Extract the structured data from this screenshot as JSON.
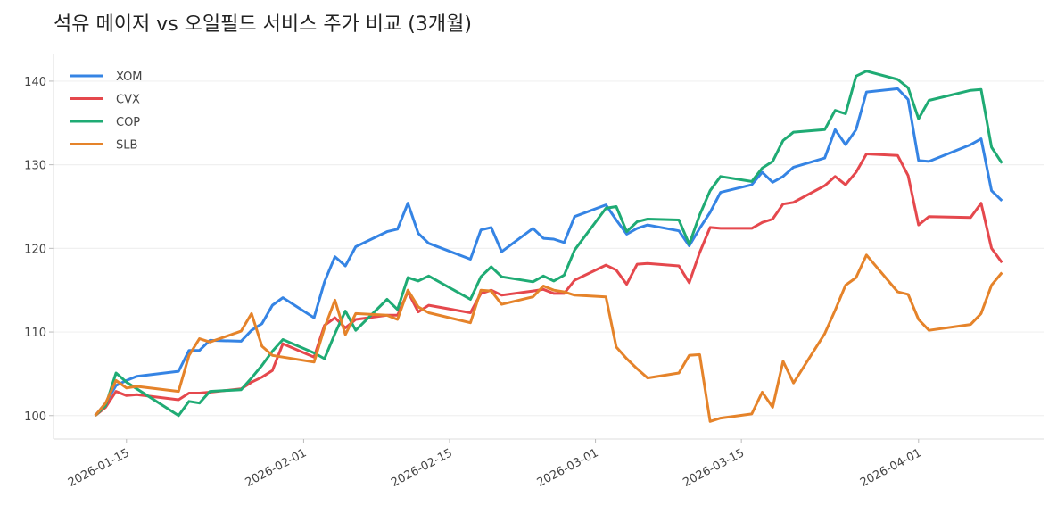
{
  "chart_data": {
    "type": "line",
    "title": "석유 메이저 vs 오일필드 서비스 주가 비교 (3개월)",
    "x": [
      "2026-01-12",
      "2026-01-13",
      "2026-01-14",
      "2026-01-15",
      "2026-01-16",
      "2026-01-20",
      "2026-01-21",
      "2026-01-22",
      "2026-01-23",
      "2026-01-26",
      "2026-01-27",
      "2026-01-28",
      "2026-01-29",
      "2026-01-30",
      "2026-02-02",
      "2026-02-03",
      "2026-02-04",
      "2026-02-05",
      "2026-02-06",
      "2026-02-09",
      "2026-02-10",
      "2026-02-11",
      "2026-02-12",
      "2026-02-13",
      "2026-02-17",
      "2026-02-18",
      "2026-02-19",
      "2026-02-20",
      "2026-02-23",
      "2026-02-24",
      "2026-02-25",
      "2026-02-26",
      "2026-02-27",
      "2026-03-02",
      "2026-03-03",
      "2026-03-04",
      "2026-03-05",
      "2026-03-06",
      "2026-03-09",
      "2026-03-10",
      "2026-03-11",
      "2026-03-12",
      "2026-03-13",
      "2026-03-16",
      "2026-03-17",
      "2026-03-18",
      "2026-03-19",
      "2026-03-20",
      "2026-03-23",
      "2026-03-24",
      "2026-03-25",
      "2026-03-26",
      "2026-03-27",
      "2026-03-30",
      "2026-03-31",
      "2026-04-01",
      "2026-04-02",
      "2026-04-06",
      "2026-04-07",
      "2026-04-08",
      "2026-04-09"
    ],
    "series": [
      {
        "name": "XOM",
        "color": "#3584e4",
        "values": [
          100,
          101.5,
          103.6,
          104.2,
          104.7,
          105.3,
          107.8,
          107.8,
          109.0,
          108.9,
          110.2,
          111.0,
          113.2,
          114.1,
          111.7,
          116.0,
          119.0,
          117.9,
          120.2,
          122.0,
          122.3,
          125.4,
          121.8,
          120.6,
          118.7,
          122.2,
          122.5,
          119.6,
          122.4,
          121.2,
          121.1,
          120.7,
          123.8,
          125.2,
          123.4,
          121.7,
          122.4,
          122.8,
          122.1,
          120.3,
          122.4,
          124.3,
          126.7,
          127.6,
          129.1,
          127.9,
          128.6,
          129.7,
          130.8,
          134.2,
          132.4,
          134.2,
          138.7,
          139.1,
          137.8,
          130.5,
          130.4,
          132.4,
          133.1,
          126.9,
          125.7
        ]
      },
      {
        "name": "CVX",
        "color": "#e5484d",
        "values": [
          100,
          101.0,
          102.9,
          102.4,
          102.5,
          101.9,
          102.7,
          102.7,
          102.8,
          103.2,
          104.0,
          104.6,
          105.4,
          108.6,
          107.0,
          110.8,
          111.7,
          110.5,
          111.5,
          112.0,
          112.0,
          114.8,
          112.4,
          113.2,
          112.3,
          114.6,
          115.0,
          114.4,
          114.9,
          115.1,
          114.6,
          114.6,
          116.2,
          118.0,
          117.4,
          115.7,
          118.1,
          118.2,
          117.9,
          115.9,
          119.5,
          122.5,
          122.4,
          122.4,
          123.1,
          123.5,
          125.3,
          125.5,
          127.5,
          128.6,
          127.6,
          129.1,
          131.3,
          131.1,
          128.7,
          122.8,
          123.8,
          123.7,
          125.4,
          120.0,
          118.3
        ]
      },
      {
        "name": "COP",
        "color": "#1fab74",
        "values": [
          100,
          101.2,
          105.1,
          104.0,
          103.2,
          100.0,
          101.7,
          101.5,
          102.9,
          103.1,
          104.5,
          106.0,
          107.7,
          109.1,
          107.5,
          106.8,
          109.8,
          112.5,
          110.2,
          113.9,
          112.7,
          116.5,
          116.1,
          116.7,
          113.9,
          116.6,
          117.8,
          116.6,
          116.0,
          116.7,
          116.1,
          116.8,
          119.8,
          124.8,
          125.0,
          122.0,
          123.2,
          123.5,
          123.4,
          120.5,
          124.0,
          126.9,
          128.6,
          128.0,
          129.6,
          130.4,
          132.9,
          133.9,
          134.2,
          136.5,
          136.1,
          140.6,
          141.2,
          140.2,
          139.2,
          135.5,
          137.7,
          138.9,
          139.0,
          132.1,
          130.2
        ]
      },
      {
        "name": "SLB",
        "color": "#e5832a",
        "values": [
          100,
          101.5,
          104.2,
          103.3,
          103.5,
          102.9,
          107.2,
          109.2,
          108.8,
          110.1,
          112.2,
          108.3,
          107.2,
          107.0,
          106.4,
          110.5,
          113.8,
          109.7,
          112.2,
          112.0,
          111.5,
          115.0,
          113.0,
          112.3,
          111.1,
          115.0,
          114.9,
          113.3,
          114.2,
          115.5,
          115.0,
          114.8,
          114.4,
          114.2,
          108.2,
          106.8,
          105.6,
          104.5,
          105.1,
          107.2,
          107.3,
          99.3,
          99.7,
          100.2,
          102.8,
          101.0,
          106.5,
          103.9,
          109.8,
          112.6,
          115.6,
          116.5,
          119.2,
          114.8,
          114.5,
          111.5,
          110.2,
          110.9,
          112.2,
          115.6,
          117.1
        ]
      }
    ],
    "xlim": [
      "2026-01-08",
      "2026-04-13"
    ],
    "xticks": [
      "2026-01-15",
      "2026-02-01",
      "2026-02-15",
      "2026-03-01",
      "2026-03-15",
      "2026-04-01"
    ],
    "ylim": [
      97.2,
      143.3
    ],
    "yticks": [
      100,
      110,
      120,
      130,
      140
    ],
    "grid": true,
    "legend": "upper left"
  }
}
